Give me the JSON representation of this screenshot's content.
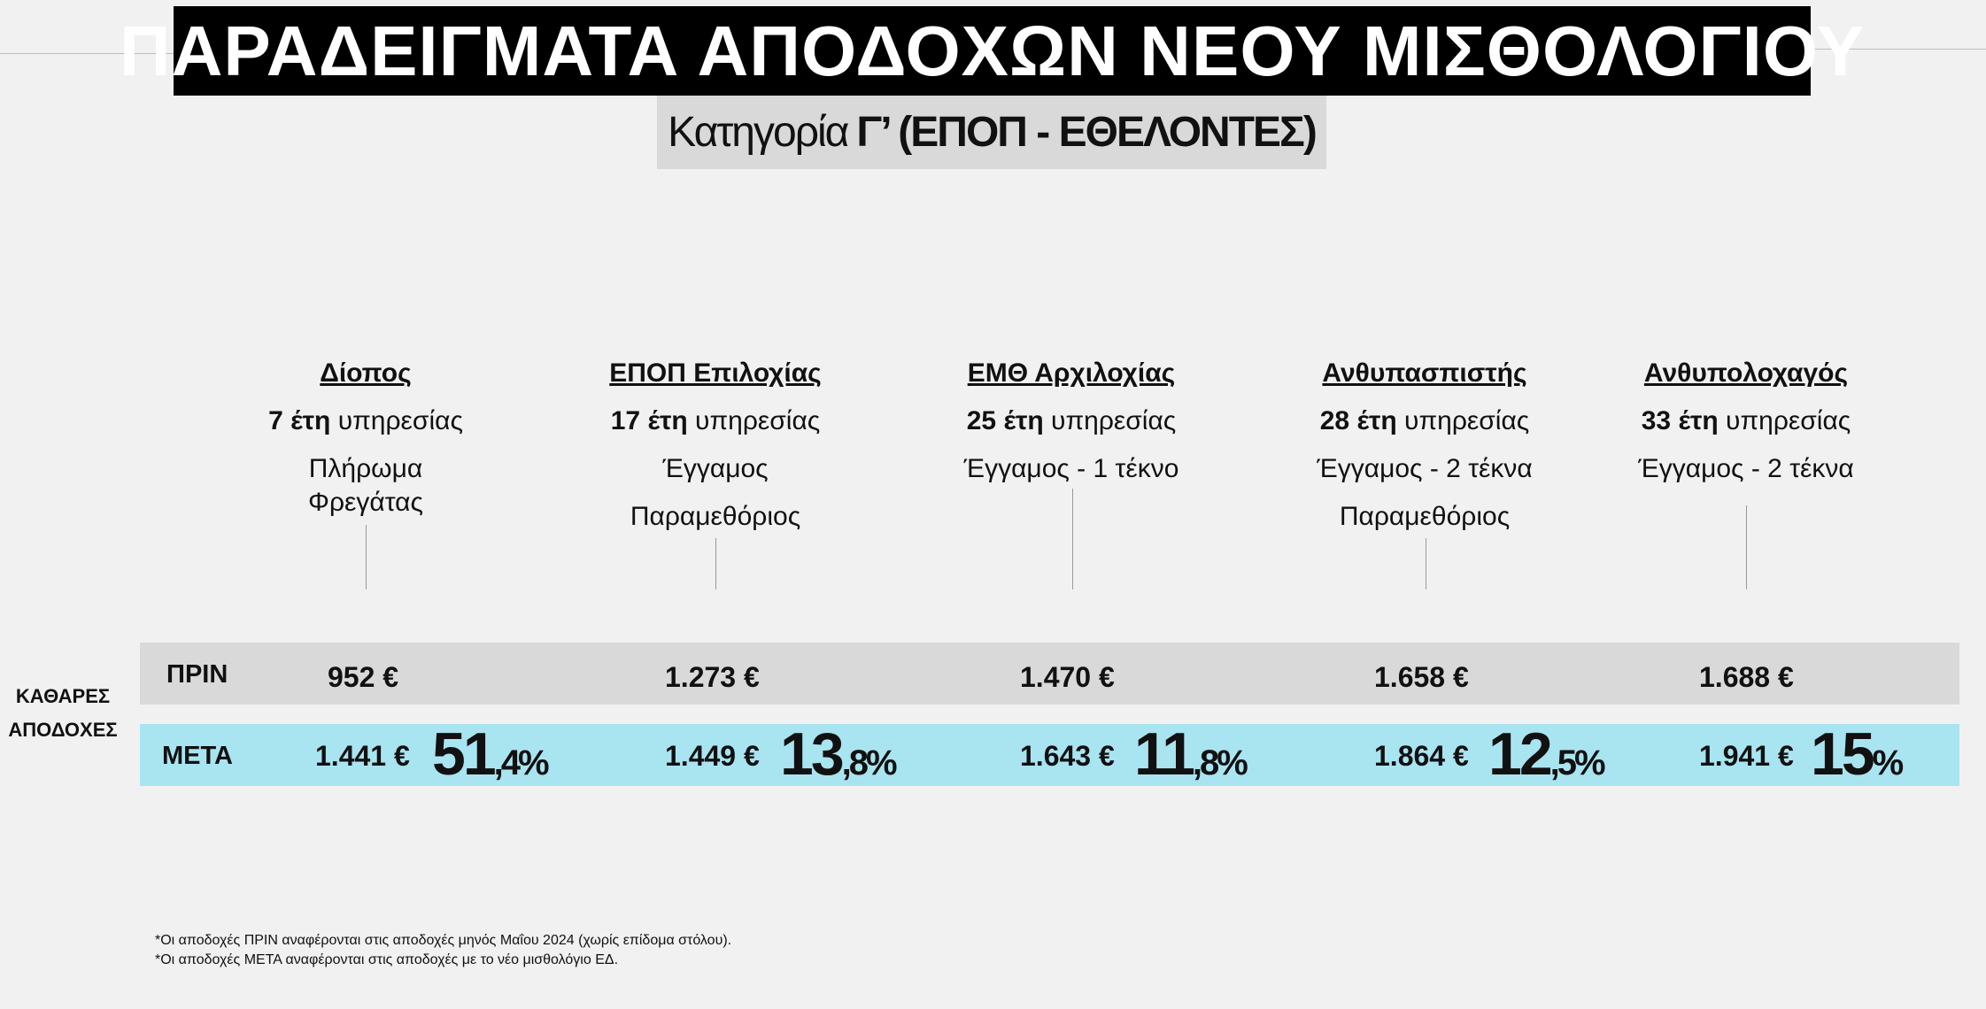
{
  "header": {
    "title": "ΠΑΡΑΔΕΙΓΜΑΤΑ ΑΠΟΔΟΧΩΝ ΝΕΟΥ ΜΙΣΘΟΛΟΓΙΟΥ",
    "subtitle_prefix": "Κατηγορία",
    "subtitle_bold": "Γ’ (ΕΠΟΠ - ΕΘΕΛΟΝΤΕΣ)"
  },
  "side_label": [
    "ΚΑΘΑΡΕΣ",
    "ΑΠΟΔΟΧΕΣ"
  ],
  "row_labels": {
    "before": "ΠΡΙΝ",
    "after": "ΜΕΤΑ"
  },
  "examples": [
    {
      "rank": " Δίοπος",
      "years_num": "7 έτη",
      "years_text": " υπηρεσίας",
      "details": [
        "Πλήρωμα",
        "Φρεγάτας"
      ],
      "before": "952 €",
      "after": "1.441 €",
      "pct_int": "51",
      "pct_frac": ",4%"
    },
    {
      "rank": "ΕΠΟΠ Επιλοχίας",
      "years_num": "17 έτη",
      "years_text": " υπηρεσίας",
      "details": [
        "Έγγαμος",
        "Παραμεθόριος"
      ],
      "before": "1.273 €",
      "after": "1.449 €",
      "pct_int": "13",
      "pct_frac": ",8%"
    },
    {
      "rank": "ΕΜΘ Αρχιλοχίας",
      "years_num": "25 έτη",
      "years_text": " υπηρεσίας",
      "details": [
        "Έγγαμος - 1 τέκνο"
      ],
      "before": "1.470 €",
      "after": "1.643 €",
      "pct_int": "11",
      "pct_frac": ",8%"
    },
    {
      "rank": "Ανθυπασπιστής",
      "years_num": "28 έτη",
      "years_text": " υπηρεσίας",
      "details": [
        "Έγγαμος - 2 τέκνα",
        "Παραμεθόριος"
      ],
      "before": "1.658 €",
      "after": "1.864 €",
      "pct_int": "12",
      "pct_frac": ",5%"
    },
    {
      "rank": "Ανθυπολοχαγός",
      "years_num": "33 έτη",
      "years_text": " υπηρεσίας",
      "details": [
        "Έγγαμος - 2 τέκνα"
      ],
      "before": "1.688 €",
      "after": "1.941 €",
      "pct_int": "15",
      "pct_frac": "%"
    }
  ],
  "footnotes": [
    "*Οι αποδοχές ΠΡΙΝ αναφέρονται στις αποδοχές μηνός Μαΐου 2024 (χωρίς επίδομα στόλου).",
    "*Οι αποδοχές ΜΕΤΑ αναφέρονται στις αποδοχές με το νέο μισθολόγιο ΕΔ."
  ]
}
